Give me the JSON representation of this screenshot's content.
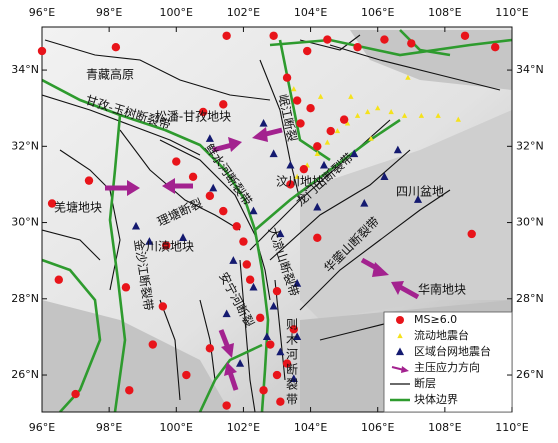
{
  "chart_data": {
    "type": "map",
    "xlim": [
      96,
      110
    ],
    "ylim": [
      25.03,
      35.13
    ],
    "xticks": [
      {
        "value": 96,
        "label": "96°E"
      },
      {
        "value": 98,
        "label": "98°E"
      },
      {
        "value": 100,
        "label": "100°E"
      },
      {
        "value": 102,
        "label": "102°E"
      },
      {
        "value": 104,
        "label": "104°E"
      },
      {
        "value": 106,
        "label": "106°E"
      },
      {
        "value": 108,
        "label": "108°E"
      },
      {
        "value": 110,
        "label": "110°E"
      }
    ],
    "yticks": [
      {
        "value": 26,
        "label": "26°N"
      },
      {
        "value": 28,
        "label": "28°N"
      },
      {
        "value": 30,
        "label": "30°N"
      },
      {
        "value": 32,
        "label": "32°N"
      },
      {
        "value": 34,
        "label": "34°N"
      }
    ],
    "places": [
      "青藏高原",
      "松潘-甘孜地块",
      "甘孜-玉树断裂带",
      "岷江断裂",
      "鲜水河断裂带",
      "汶川地块",
      "龙门山断裂带",
      "四川盆地",
      "羌塘地块",
      "理塘断裂",
      "川滇地块",
      "金沙江断裂带",
      "大凉山断裂带",
      "华蓥山断裂带",
      "华南地块",
      "安宁河断裂",
      "则木河断裂带"
    ],
    "series": [
      {
        "name": "MS≥6.0",
        "color": "#e8141a",
        "marker": "circle",
        "x": [
          100.0,
          100.5,
          101.0,
          101.4,
          101.8,
          102.0,
          103.4,
          103.8,
          104.2,
          104.6,
          105.0,
          103.7,
          103.6,
          104.0,
          103.3,
          96.0,
          98.2,
          101.5,
          102.9,
          103.9,
          104.5,
          105.4,
          106.2,
          107.0,
          108.6,
          109.5,
          101.4,
          100.8,
          96.3,
          97.4,
          96.5,
          98.5,
          99.6,
          99.3,
          98.6,
          97.0,
          99.7,
          102.2,
          102.5,
          102.8,
          103.0,
          103.1,
          102.6,
          101.0,
          100.3,
          101.5,
          102.1,
          103.0,
          103.5,
          103.3,
          108.8,
          104.2
        ],
        "y": [
          31.6,
          31.2,
          30.7,
          30.3,
          29.9,
          29.5,
          31.0,
          31.4,
          32.0,
          32.4,
          32.7,
          32.6,
          33.2,
          33.0,
          33.8,
          34.5,
          34.6,
          34.9,
          34.9,
          34.5,
          34.8,
          34.6,
          34.8,
          34.7,
          34.9,
          34.6,
          33.1,
          32.9,
          30.5,
          31.1,
          28.5,
          28.3,
          27.8,
          26.8,
          25.6,
          25.5,
          29.4,
          28.5,
          27.5,
          26.8,
          26.0,
          25.3,
          25.6,
          26.7,
          26.0,
          25.2,
          28.9,
          28.2,
          27.2,
          26.3,
          29.7,
          29.6
        ]
      },
      {
        "name": "流动地震台",
        "color": "#f5e21b",
        "marker": "triangle",
        "x": [
          103.6,
          103.9,
          104.2,
          104.5,
          104.8,
          105.1,
          105.4,
          105.7,
          106.0,
          106.4,
          106.8,
          107.3,
          107.8,
          108.4,
          105.2,
          104.3,
          105.8,
          106.9,
          103.5
        ],
        "y": [
          31.2,
          31.5,
          31.8,
          32.1,
          32.4,
          32.6,
          32.8,
          32.9,
          33.0,
          32.9,
          32.8,
          32.8,
          32.8,
          32.7,
          33.3,
          33.3,
          32.2,
          33.8,
          33.5
        ]
      },
      {
        "name": "区域台网地震台",
        "color": "#141a70",
        "marker": "triangle",
        "x": [
          101.0,
          102.6,
          102.9,
          103.4,
          104.4,
          105.3,
          106.6,
          106.2,
          107.2,
          105.6,
          104.2,
          103.1,
          102.3,
          101.1,
          101.7,
          102.3,
          101.5,
          102.9,
          103.6,
          103.1,
          103.5,
          99.2,
          100.2,
          98.8,
          102.7,
          103.6,
          101.9
        ],
        "y": [
          32.2,
          32.6,
          31.8,
          31.5,
          31.5,
          31.8,
          31.9,
          31.2,
          30.6,
          30.5,
          30.4,
          29.7,
          30.3,
          30.9,
          29.0,
          28.3,
          27.6,
          27.8,
          28.4,
          26.6,
          25.9,
          29.5,
          29.6,
          29.9,
          27.0,
          27.0,
          26.3
        ]
      }
    ],
    "legend_items": [
      "主压应力方向",
      "断层",
      "块体边界"
    ]
  }
}
